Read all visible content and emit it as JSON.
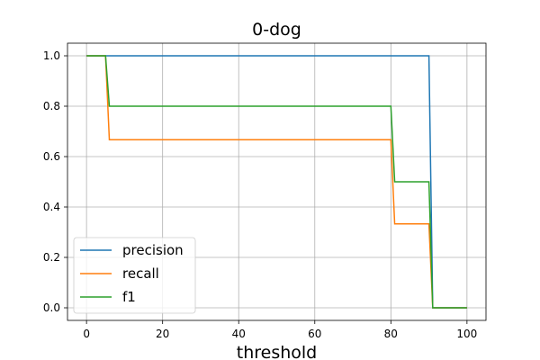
{
  "chart_data": {
    "type": "line",
    "title": "0-dog",
    "xlabel": "threshold",
    "ylabel": "",
    "xlim": [
      -5,
      105
    ],
    "ylim": [
      -0.05,
      1.05
    ],
    "xticks": [
      0,
      20,
      40,
      60,
      80,
      100
    ],
    "yticks": [
      0.0,
      0.2,
      0.4,
      0.6,
      0.8,
      1.0
    ],
    "xtick_labels": [
      "0",
      "20",
      "40",
      "60",
      "80",
      "100"
    ],
    "ytick_labels": [
      "0.0",
      "0.2",
      "0.4",
      "0.6",
      "0.8",
      "1.0"
    ],
    "grid": true,
    "legend_position": "lower-left",
    "series": [
      {
        "name": "precision",
        "color": "#1f77b4",
        "x": [
          0,
          1,
          2,
          3,
          4,
          5,
          6,
          7,
          8,
          9,
          10,
          11,
          12,
          13,
          14,
          15,
          16,
          17,
          18,
          19,
          20,
          21,
          22,
          23,
          24,
          25,
          26,
          27,
          28,
          29,
          30,
          31,
          32,
          33,
          34,
          35,
          36,
          37,
          38,
          39,
          40,
          41,
          42,
          43,
          44,
          45,
          46,
          47,
          48,
          49,
          50,
          51,
          52,
          53,
          54,
          55,
          56,
          57,
          58,
          59,
          60,
          61,
          62,
          63,
          64,
          65,
          66,
          67,
          68,
          69,
          70,
          71,
          72,
          73,
          74,
          75,
          76,
          77,
          78,
          79,
          80,
          81,
          82,
          83,
          84,
          85,
          86,
          87,
          88,
          89,
          90,
          91,
          92,
          93,
          94,
          95,
          96,
          97,
          98,
          99,
          100
        ],
        "y": [
          1,
          1,
          1,
          1,
          1,
          1,
          1,
          1,
          1,
          1,
          1,
          1,
          1,
          1,
          1,
          1,
          1,
          1,
          1,
          1,
          1,
          1,
          1,
          1,
          1,
          1,
          1,
          1,
          1,
          1,
          1,
          1,
          1,
          1,
          1,
          1,
          1,
          1,
          1,
          1,
          1,
          1,
          1,
          1,
          1,
          1,
          1,
          1,
          1,
          1,
          1,
          1,
          1,
          1,
          1,
          1,
          1,
          1,
          1,
          1,
          1,
          1,
          1,
          1,
          1,
          1,
          1,
          1,
          1,
          1,
          1,
          1,
          1,
          1,
          1,
          1,
          1,
          1,
          1,
          1,
          1,
          1,
          1,
          1,
          1,
          1,
          1,
          1,
          1,
          1,
          1,
          0,
          0,
          0,
          0,
          0,
          0,
          0,
          0,
          0,
          0
        ]
      },
      {
        "name": "recall",
        "color": "#ff7f0e",
        "x": [
          0,
          1,
          2,
          3,
          4,
          5,
          6,
          7,
          8,
          9,
          10,
          11,
          12,
          13,
          14,
          15,
          16,
          17,
          18,
          19,
          20,
          21,
          22,
          23,
          24,
          25,
          26,
          27,
          28,
          29,
          30,
          31,
          32,
          33,
          34,
          35,
          36,
          37,
          38,
          39,
          40,
          41,
          42,
          43,
          44,
          45,
          46,
          47,
          48,
          49,
          50,
          51,
          52,
          53,
          54,
          55,
          56,
          57,
          58,
          59,
          60,
          61,
          62,
          63,
          64,
          65,
          66,
          67,
          68,
          69,
          70,
          71,
          72,
          73,
          74,
          75,
          76,
          77,
          78,
          79,
          80,
          81,
          82,
          83,
          84,
          85,
          86,
          87,
          88,
          89,
          90,
          91,
          92,
          93,
          94,
          95,
          96,
          97,
          98,
          99,
          100
        ],
        "y": [
          1,
          1,
          1,
          1,
          1,
          1,
          0.667,
          0.667,
          0.667,
          0.667,
          0.667,
          0.667,
          0.667,
          0.667,
          0.667,
          0.667,
          0.667,
          0.667,
          0.667,
          0.667,
          0.667,
          0.667,
          0.667,
          0.667,
          0.667,
          0.667,
          0.667,
          0.667,
          0.667,
          0.667,
          0.667,
          0.667,
          0.667,
          0.667,
          0.667,
          0.667,
          0.667,
          0.667,
          0.667,
          0.667,
          0.667,
          0.667,
          0.667,
          0.667,
          0.667,
          0.667,
          0.667,
          0.667,
          0.667,
          0.667,
          0.667,
          0.667,
          0.667,
          0.667,
          0.667,
          0.667,
          0.667,
          0.667,
          0.667,
          0.667,
          0.667,
          0.667,
          0.667,
          0.667,
          0.667,
          0.667,
          0.667,
          0.667,
          0.667,
          0.667,
          0.667,
          0.667,
          0.667,
          0.667,
          0.667,
          0.667,
          0.667,
          0.667,
          0.667,
          0.667,
          0.667,
          0.333,
          0.333,
          0.333,
          0.333,
          0.333,
          0.333,
          0.333,
          0.333,
          0.333,
          0.333,
          0,
          0,
          0,
          0,
          0,
          0,
          0,
          0,
          0,
          0
        ]
      },
      {
        "name": "f1",
        "color": "#2ca02c",
        "x": [
          0,
          1,
          2,
          3,
          4,
          5,
          6,
          7,
          8,
          9,
          10,
          11,
          12,
          13,
          14,
          15,
          16,
          17,
          18,
          19,
          20,
          21,
          22,
          23,
          24,
          25,
          26,
          27,
          28,
          29,
          30,
          31,
          32,
          33,
          34,
          35,
          36,
          37,
          38,
          39,
          40,
          41,
          42,
          43,
          44,
          45,
          46,
          47,
          48,
          49,
          50,
          51,
          52,
          53,
          54,
          55,
          56,
          57,
          58,
          59,
          60,
          61,
          62,
          63,
          64,
          65,
          66,
          67,
          68,
          69,
          70,
          71,
          72,
          73,
          74,
          75,
          76,
          77,
          78,
          79,
          80,
          81,
          82,
          83,
          84,
          85,
          86,
          87,
          88,
          89,
          90,
          91,
          92,
          93,
          94,
          95,
          96,
          97,
          98,
          99,
          100
        ],
        "y": [
          1,
          1,
          1,
          1,
          1,
          1,
          0.8,
          0.8,
          0.8,
          0.8,
          0.8,
          0.8,
          0.8,
          0.8,
          0.8,
          0.8,
          0.8,
          0.8,
          0.8,
          0.8,
          0.8,
          0.8,
          0.8,
          0.8,
          0.8,
          0.8,
          0.8,
          0.8,
          0.8,
          0.8,
          0.8,
          0.8,
          0.8,
          0.8,
          0.8,
          0.8,
          0.8,
          0.8,
          0.8,
          0.8,
          0.8,
          0.8,
          0.8,
          0.8,
          0.8,
          0.8,
          0.8,
          0.8,
          0.8,
          0.8,
          0.8,
          0.8,
          0.8,
          0.8,
          0.8,
          0.8,
          0.8,
          0.8,
          0.8,
          0.8,
          0.8,
          0.8,
          0.8,
          0.8,
          0.8,
          0.8,
          0.8,
          0.8,
          0.8,
          0.8,
          0.8,
          0.8,
          0.8,
          0.8,
          0.8,
          0.8,
          0.8,
          0.8,
          0.8,
          0.8,
          0.8,
          0.5,
          0.5,
          0.5,
          0.5,
          0.5,
          0.5,
          0.5,
          0.5,
          0.5,
          0.5,
          0,
          0,
          0,
          0,
          0,
          0,
          0,
          0,
          0,
          0
        ]
      }
    ]
  }
}
